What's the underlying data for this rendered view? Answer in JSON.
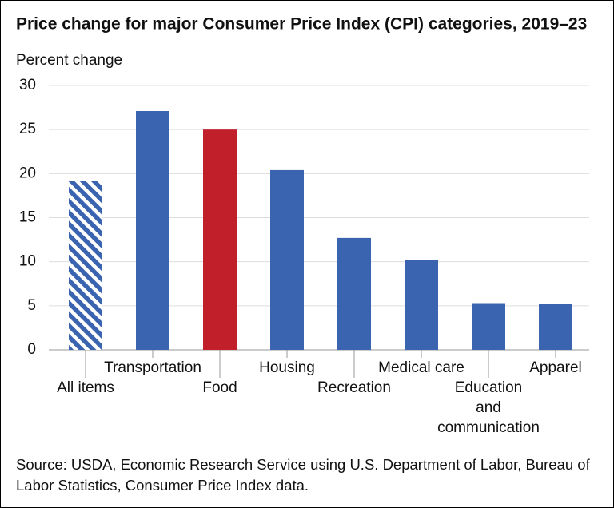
{
  "chart_data": {
    "type": "bar",
    "title": "Price change for major Consumer Price Index (CPI) categories, 2019–23",
    "y_label": "Percent change",
    "categories": [
      "All items",
      "Transportation",
      "Food",
      "Housing",
      "Recreation",
      "Medical care",
      "Education and communication",
      "Apparel"
    ],
    "values": [
      19.2,
      27.1,
      25.0,
      20.4,
      12.7,
      10.2,
      5.3,
      5.2
    ],
    "colors": [
      "#3a63b0",
      "#3a63b0",
      "#c1202b",
      "#3a63b0",
      "#3a63b0",
      "#3a63b0",
      "#3a63b0",
      "#3a63b0"
    ],
    "hatched": [
      true,
      false,
      false,
      false,
      false,
      false,
      false,
      false
    ],
    "ylim": [
      0,
      30
    ],
    "yticks": [
      0,
      5,
      10,
      15,
      20,
      25,
      30
    ],
    "grid": true,
    "source": "Source: USDA, Economic Research Service using U.S. Department of Labor, Bureau of Labor Statistics, Consumer Price Index data."
  }
}
